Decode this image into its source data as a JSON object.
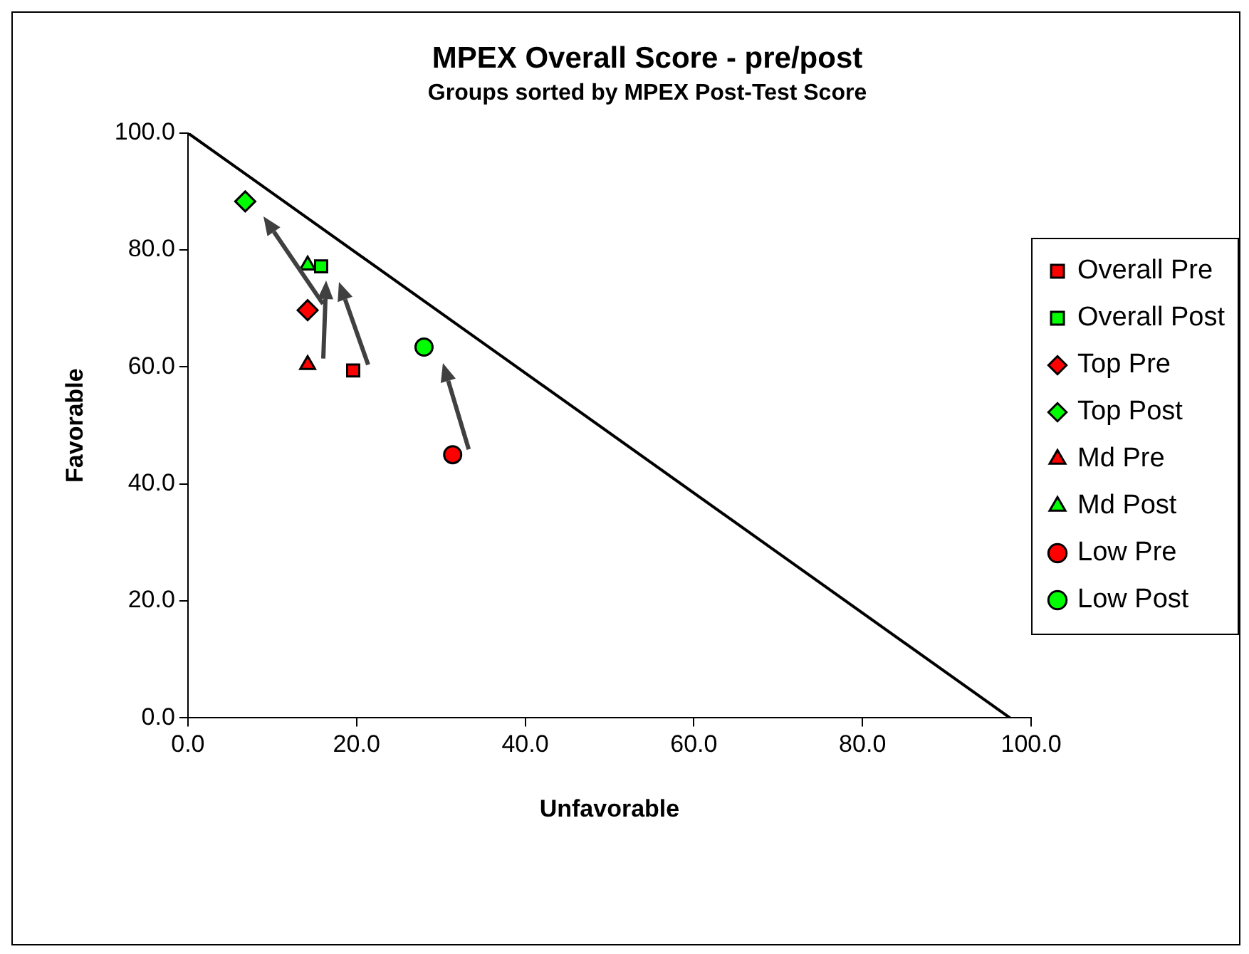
{
  "chart_data": {
    "type": "scatter",
    "title": "MPEX Overall Score - pre/post",
    "subtitle": "Groups sorted by MPEX Post-Test Score",
    "xlabel": "Unfavorable",
    "ylabel": "Favorable",
    "xlim": [
      0,
      100
    ],
    "ylim": [
      0,
      100
    ],
    "xticks": [
      {
        "value": 0,
        "label": "0.0"
      },
      {
        "value": 20,
        "label": "20.0"
      },
      {
        "value": 40,
        "label": "40.0"
      },
      {
        "value": 60,
        "label": "60.0"
      },
      {
        "value": 80,
        "label": "80.0"
      },
      {
        "value": 100,
        "label": "100.0"
      }
    ],
    "yticks": [
      {
        "value": 0,
        "label": "0.0"
      },
      {
        "value": 20,
        "label": "20.0"
      },
      {
        "value": 40,
        "label": "40.0"
      },
      {
        "value": 60,
        "label": "60.0"
      },
      {
        "value": 80,
        "label": "80.0"
      },
      {
        "value": 100,
        "label": "100.0"
      }
    ],
    "grid": false,
    "legend": "right",
    "series": [
      {
        "name": "Overall Pre",
        "color": "#ff0000",
        "marker": "square",
        "x": [
          19.6
        ],
        "values": [
          59.4
        ]
      },
      {
        "name": "Overall Post",
        "color": "#00ff00",
        "marker": "square",
        "x": [
          15.8
        ],
        "values": [
          77.2
        ]
      },
      {
        "name": "Top Pre",
        "color": "#ff0000",
        "marker": "diamond",
        "x": [
          14.2
        ],
        "values": [
          69.7
        ]
      },
      {
        "name": "Top Post",
        "color": "#00ff00",
        "marker": "diamond",
        "x": [
          6.8
        ],
        "values": [
          88.3
        ]
      },
      {
        "name": "Md Pre",
        "color": "#ff0000",
        "marker": "triangle",
        "x": [
          14.2
        ],
        "values": [
          60.4
        ]
      },
      {
        "name": "Md Post",
        "color": "#00ff00",
        "marker": "triangle",
        "x": [
          14.2
        ],
        "values": [
          77.4
        ]
      },
      {
        "name": "Low Pre",
        "color": "#ff0000",
        "marker": "circle",
        "x": [
          31.4
        ],
        "values": [
          45.0
        ]
      },
      {
        "name": "Low Post",
        "color": "#00ff00",
        "marker": "circle",
        "x": [
          28.0
        ],
        "values": [
          63.4
        ]
      },
      {
        "type": "line",
        "color": "#000000",
        "marker": "none",
        "x": [
          0,
          97.5
        ],
        "values": [
          100,
          0
        ]
      }
    ]
  }
}
